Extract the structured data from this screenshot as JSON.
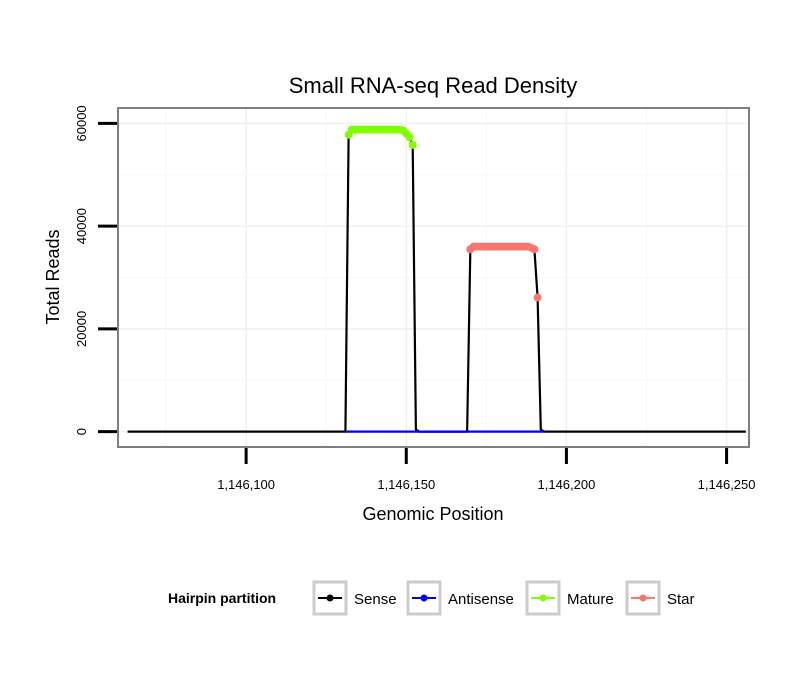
{
  "chart_data": {
    "type": "line",
    "title": "Small RNA-seq Read Density",
    "xlabel": "Genomic Position",
    "ylabel": "Total Reads",
    "xlim": [
      1146060,
      1146257
    ],
    "ylim": [
      -3000,
      63000
    ],
    "x_ticks": [
      {
        "value": 1146100,
        "label": "1,146,100"
      },
      {
        "value": 1146150,
        "label": "1,146,150"
      },
      {
        "value": 1146200,
        "label": "1,146,200"
      },
      {
        "value": 1146250,
        "label": "1,146,250"
      }
    ],
    "y_ticks": [
      {
        "value": 0,
        "label": "0"
      },
      {
        "value": 20000,
        "label": "20000"
      },
      {
        "value": 40000,
        "label": "40000"
      },
      {
        "value": 60000,
        "label": "60000"
      }
    ],
    "grid": true,
    "legend": {
      "title": "Hairpin partition",
      "position": "bottom",
      "entries": [
        "Sense",
        "Antisense",
        "Mature",
        "Star"
      ]
    },
    "series": [
      {
        "name": "Sense",
        "color": "#000000",
        "points": false,
        "x": [
          1146063,
          1146131,
          1146132,
          1146133,
          1146134,
          1146135,
          1146136,
          1146137,
          1146138,
          1146139,
          1146140,
          1146141,
          1146142,
          1146143,
          1146144,
          1146145,
          1146146,
          1146147,
          1146148,
          1146149,
          1146150,
          1146151,
          1146152,
          1146153,
          1146154,
          1146169,
          1146170,
          1146171,
          1146172,
          1146173,
          1146174,
          1146175,
          1146176,
          1146177,
          1146178,
          1146179,
          1146180,
          1146181,
          1146182,
          1146183,
          1146184,
          1146185,
          1146186,
          1146187,
          1146188,
          1146189,
          1146190,
          1146191,
          1146192,
          1146193,
          1146256
        ],
        "y": [
          0,
          0,
          57800,
          58800,
          58800,
          58800,
          58800,
          58800,
          58800,
          58800,
          58800,
          58800,
          58800,
          58800,
          58800,
          58800,
          58800,
          58800,
          58800,
          58600,
          58000,
          57300,
          55800,
          400,
          0,
          0,
          35500,
          36000,
          36000,
          36000,
          36000,
          36000,
          36000,
          36000,
          36000,
          36000,
          36000,
          36000,
          36000,
          36000,
          36000,
          36000,
          36000,
          36000,
          36000,
          35800,
          35500,
          26100,
          400,
          0,
          0
        ]
      },
      {
        "name": "Antisense",
        "color": "#0000ff",
        "points": false,
        "x": [
          1146131,
          1146154,
          1146169,
          1146193
        ],
        "y": [
          0,
          0,
          0,
          0
        ]
      },
      {
        "name": "Mature",
        "color": "#7fff00",
        "points": true,
        "x": [
          1146132,
          1146133,
          1146134,
          1146135,
          1146136,
          1146137,
          1146138,
          1146139,
          1146140,
          1146141,
          1146142,
          1146143,
          1146144,
          1146145,
          1146146,
          1146147,
          1146148,
          1146149,
          1146150,
          1146151,
          1146152
        ],
        "y": [
          57800,
          58800,
          58800,
          58800,
          58800,
          58800,
          58800,
          58800,
          58800,
          58800,
          58800,
          58800,
          58800,
          58800,
          58800,
          58800,
          58800,
          58600,
          58000,
          57300,
          55800
        ]
      },
      {
        "name": "Star",
        "color": "#f8766d",
        "points": true,
        "x": [
          1146170,
          1146171,
          1146172,
          1146173,
          1146174,
          1146175,
          1146176,
          1146177,
          1146178,
          1146179,
          1146180,
          1146181,
          1146182,
          1146183,
          1146184,
          1146185,
          1146186,
          1146187,
          1146188,
          1146189,
          1146190,
          1146191
        ],
        "y": [
          35500,
          36000,
          36000,
          36000,
          36000,
          36000,
          36000,
          36000,
          36000,
          36000,
          36000,
          36000,
          36000,
          36000,
          36000,
          36000,
          36000,
          36000,
          36000,
          35800,
          35500,
          26100
        ]
      }
    ]
  }
}
